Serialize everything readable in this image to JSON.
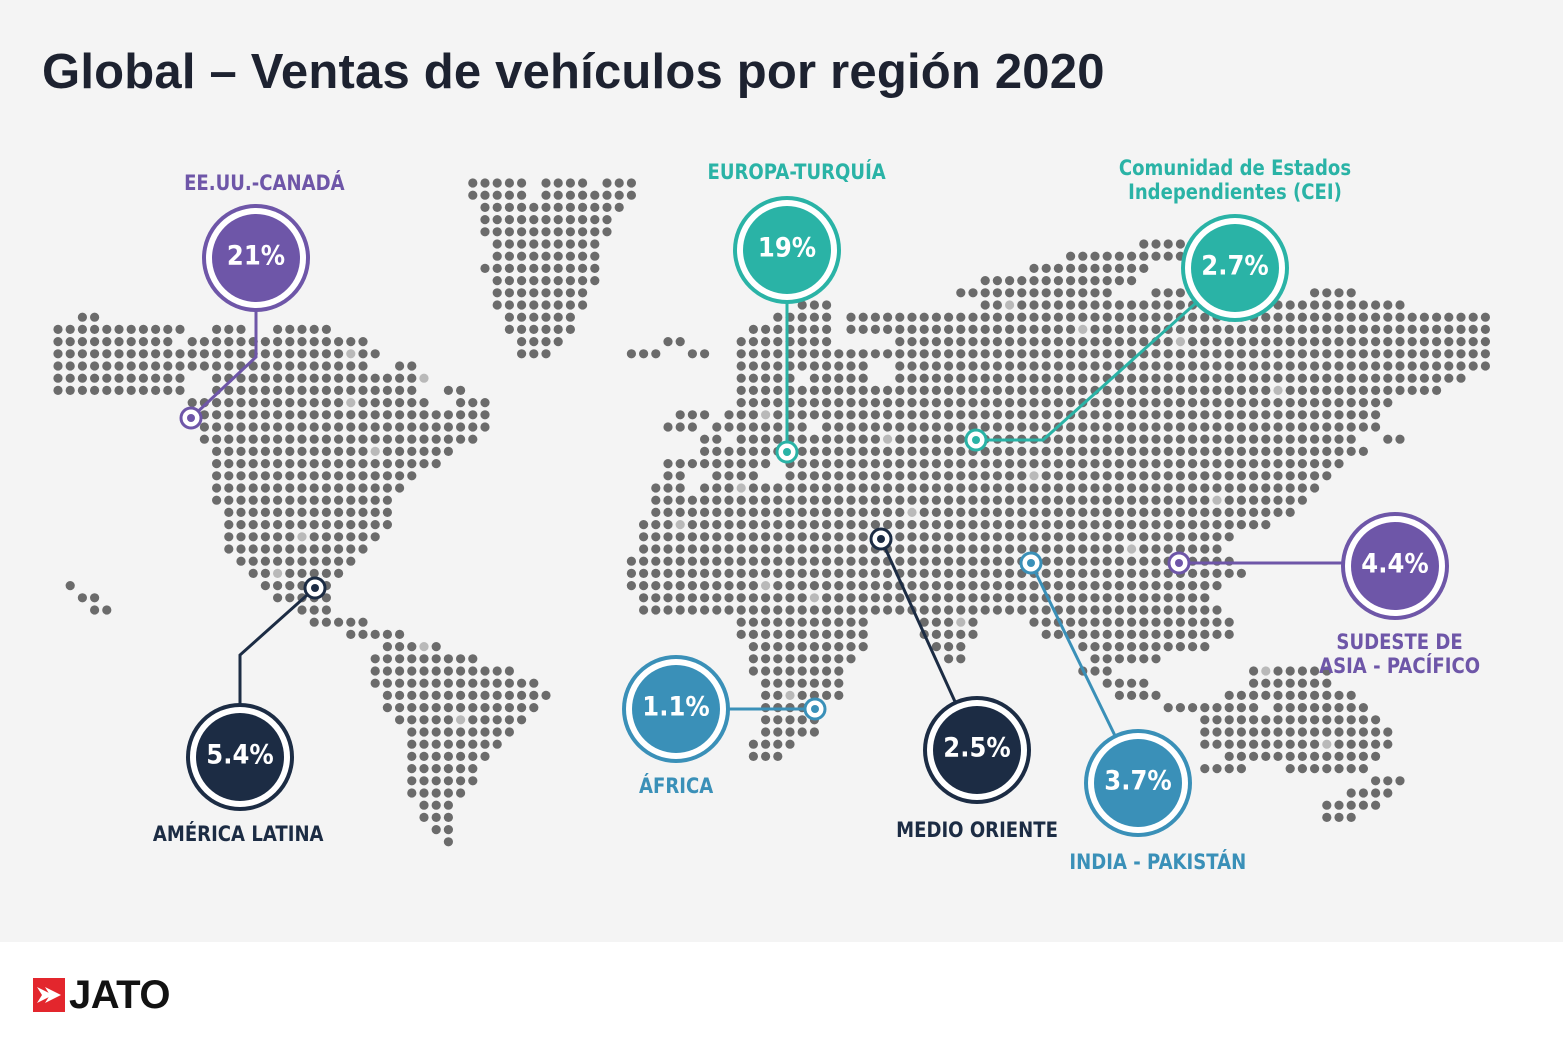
{
  "title": "Global – Ventas de vehículos por región 2020",
  "colors": {
    "background": "#f4f4f4",
    "dots": "#6b6b6b",
    "dots_light": "#b9b9b9",
    "purple": "#6e56a8",
    "teal": "#2ab3a6",
    "navy": "#1c2c44",
    "blue": "#3a90b8",
    "title": "#1d2230"
  },
  "regions": [
    {
      "id": "us-canada",
      "name": "EE.UU.-CANADÁ",
      "share": "21%",
      "color": "purple"
    },
    {
      "id": "europe",
      "name": "EUROPA-TURQUÍA",
      "share": "19%",
      "color": "teal"
    },
    {
      "id": "cis",
      "name": "Comunidad de Estados Independientes (CEI)",
      "share": "2.7%",
      "color": "teal"
    },
    {
      "id": "sea-pacific",
      "name": "SUDESTE DE ASIA - PACÍFICO",
      "share": "4.4%",
      "color": "purple"
    },
    {
      "id": "latam",
      "name": "AMÉRICA LATINA",
      "share": "5.4%",
      "color": "navy"
    },
    {
      "id": "africa",
      "name": "ÁFRICA",
      "share": "1.1%",
      "color": "blue"
    },
    {
      "id": "middle-east",
      "name": "MEDIO ORIENTE",
      "share": "2.5%",
      "color": "navy"
    },
    {
      "id": "india-pak",
      "name": "INDIA - PAKISTÁN",
      "share": "3.7%",
      "color": "blue"
    }
  ],
  "label_lines": {
    "us-canada": [
      "EE.UU.-CANADÁ"
    ],
    "europe": [
      "EUROPA-TURQUÍA"
    ],
    "cis": [
      "Comunidad de Estados",
      "Independientes (CEI)"
    ],
    "sea-pacific": [
      "SUDESTE DE",
      "ASIA - PACÍFICO"
    ],
    "latam": [
      "AMÉRICA LATINA"
    ],
    "africa": [
      "ÁFRICA"
    ],
    "middle-east": [
      "MEDIO ORIENTE"
    ],
    "india-pak": [
      "INDIA - PAKISTÁN"
    ]
  },
  "brand": {
    "logo_text": "JATO",
    "logo_colors": [
      "#e3262d",
      "#ffffff"
    ]
  }
}
